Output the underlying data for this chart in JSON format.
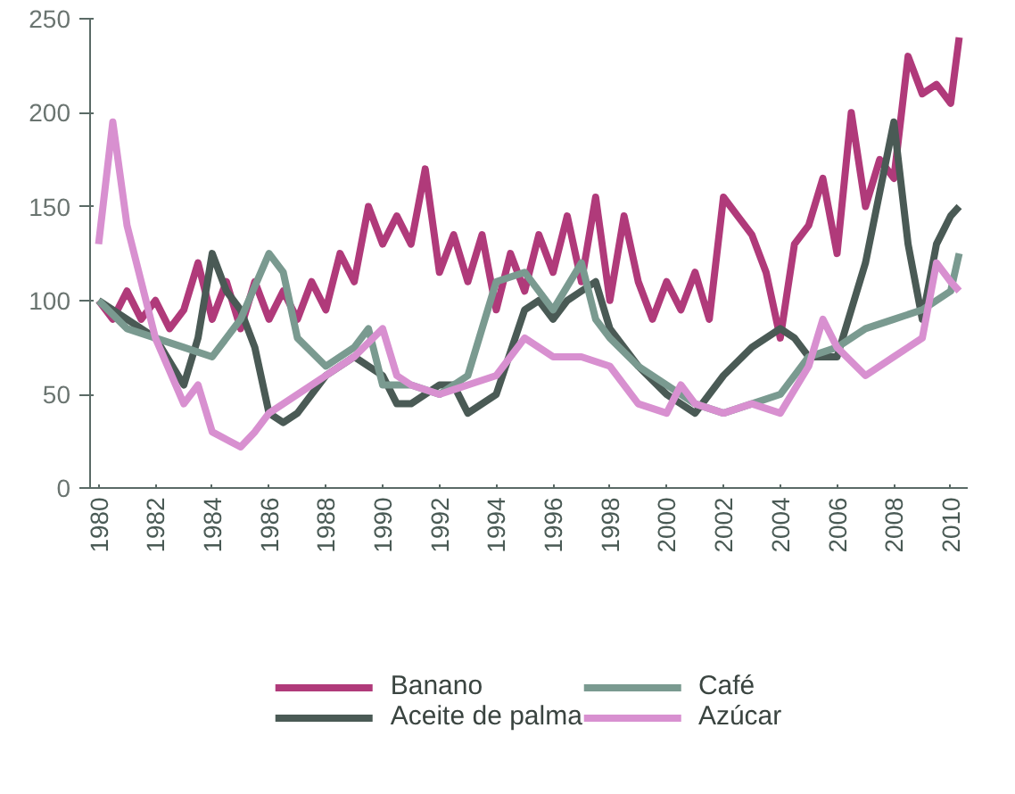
{
  "chart_data": {
    "type": "line",
    "xlim": [
      1979.7,
      2010.6
    ],
    "xticks": [
      1980,
      1982,
      1984,
      1986,
      1988,
      1990,
      1992,
      1994,
      1996,
      1998,
      2000,
      2002,
      2004,
      2006,
      2008,
      2010
    ],
    "ylim": [
      0,
      250
    ],
    "yticks": [
      0,
      50,
      100,
      150,
      200,
      250
    ],
    "grid": false,
    "legend": "bottom",
    "line_style": "solid",
    "marker": "none",
    "series": [
      {
        "name": "Banano",
        "color": "#b03a7a",
        "x": [
          1980,
          1980.5,
          1981,
          1981.5,
          1982,
          1982.5,
          1983,
          1983.5,
          1984,
          1984.5,
          1985,
          1985.5,
          1986,
          1986.5,
          1987,
          1987.5,
          1988,
          1988.5,
          1989,
          1989.5,
          1990,
          1990.5,
          1991,
          1991.5,
          1992,
          1992.5,
          1993,
          1993.5,
          1994,
          1994.5,
          1995,
          1995.5,
          1996,
          1996.5,
          1997,
          1997.5,
          1998,
          1998.5,
          1999,
          1999.5,
          2000,
          2000.5,
          2001,
          2001.5,
          2002,
          2002.5,
          2003,
          2003.5,
          2004,
          2004.5,
          2005,
          2005.5,
          2006,
          2006.5,
          2007,
          2007.5,
          2008,
          2008.5,
          2009,
          2009.5,
          2010,
          2010.3
        ],
        "values": [
          100,
          90,
          105,
          90,
          100,
          85,
          95,
          120,
          90,
          110,
          85,
          110,
          90,
          105,
          90,
          110,
          95,
          125,
          110,
          150,
          130,
          145,
          130,
          170,
          115,
          135,
          110,
          135,
          95,
          125,
          105,
          135,
          115,
          145,
          110,
          155,
          100,
          145,
          110,
          90,
          110,
          95,
          115,
          90,
          155,
          145,
          135,
          115,
          80,
          130,
          140,
          165,
          125,
          200,
          150,
          175,
          165,
          230,
          210,
          215,
          205,
          240
        ]
      },
      {
        "name": "Aceite de palma",
        "color": "#4a5a55",
        "x": [
          1980,
          1981,
          1982,
          1983,
          1983.5,
          1984,
          1984.5,
          1985,
          1985.5,
          1986,
          1986.5,
          1987,
          1988,
          1989,
          1990,
          1990.5,
          1991,
          1992,
          1992.5,
          1993,
          1994,
          1995,
          1995.5,
          1996,
          1996.5,
          1997,
          1997.5,
          1998,
          1999,
          2000,
          2001,
          2002,
          2003,
          2004,
          2004.5,
          2005,
          2006,
          2007,
          2008,
          2008.5,
          2009,
          2009.5,
          2010,
          2010.3
        ],
        "values": [
          100,
          90,
          80,
          55,
          80,
          125,
          105,
          95,
          75,
          40,
          35,
          40,
          60,
          70,
          60,
          45,
          45,
          55,
          55,
          40,
          50,
          95,
          100,
          90,
          100,
          105,
          110,
          85,
          65,
          50,
          40,
          60,
          75,
          85,
          80,
          70,
          70,
          120,
          195,
          130,
          90,
          130,
          145,
          150
        ]
      },
      {
        "name": "Café",
        "color": "#7a9a90",
        "x": [
          1980,
          1981,
          1982,
          1983,
          1984,
          1985,
          1986,
          1986.5,
          1987,
          1988,
          1989,
          1989.5,
          1990,
          1991,
          1992,
          1993,
          1994,
          1995,
          1996,
          1997,
          1997.5,
          1998,
          1999,
          2000,
          2001,
          2002,
          2003,
          2004,
          2005,
          2006,
          2007,
          2008,
          2009,
          2010,
          2010.3
        ],
        "values": [
          100,
          85,
          80,
          75,
          70,
          90,
          125,
          115,
          80,
          65,
          75,
          85,
          55,
          55,
          50,
          60,
          110,
          115,
          95,
          120,
          90,
          80,
          65,
          55,
          45,
          40,
          45,
          50,
          70,
          75,
          85,
          90,
          95,
          105,
          125
        ]
      },
      {
        "name": "Azúcar",
        "color": "#d890d0",
        "x": [
          1980,
          1980.5,
          1981,
          1982,
          1983,
          1983.5,
          1984,
          1985,
          1985.5,
          1986,
          1987,
          1988,
          1989,
          1990,
          1990.5,
          1991,
          1992,
          1993,
          1994,
          1995,
          1996,
          1997,
          1998,
          1999,
          2000,
          2000.5,
          2001,
          2002,
          2003,
          2004,
          2005,
          2005.5,
          2006,
          2007,
          2008,
          2009,
          2009.5,
          2010,
          2010.3
        ],
        "values": [
          130,
          195,
          140,
          80,
          45,
          55,
          30,
          22,
          30,
          40,
          50,
          60,
          70,
          85,
          60,
          55,
          50,
          55,
          60,
          80,
          70,
          70,
          65,
          45,
          40,
          55,
          45,
          40,
          45,
          40,
          65,
          90,
          75,
          60,
          70,
          80,
          120,
          110,
          105
        ]
      }
    ]
  }
}
